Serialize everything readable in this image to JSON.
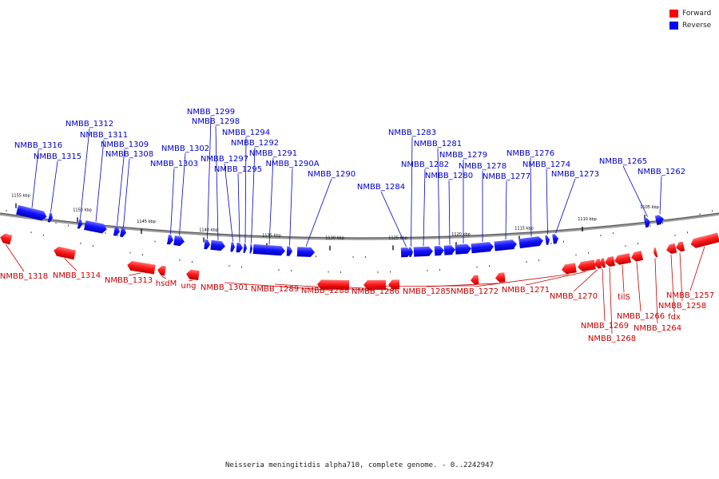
{
  "legend": {
    "forward_label": "Forward",
    "reverse_label": "Reverse",
    "forward_color": "#ff0000",
    "reverse_color": "#0000ff"
  },
  "caption": "Neisseria meningitidis alpha710, complete genome. - 0..2242947",
  "scale_labels": [
    "1155 kbp",
    "1150 kbp",
    "1145 kbp",
    "1140 kbp",
    "1135 kbp",
    "1130 kbp",
    "1125 kbp",
    "1120 kbp",
    "1115 kbp",
    "1110 kbp",
    "1105 kbp"
  ],
  "reverse_genes": [
    "NMBB_1316",
    "NMBB_1315",
    "NMBB_1312",
    "NMBB_1311",
    "NMBB_1309",
    "NMBB_1308",
    "NMBB_1303",
    "NMBB_1302",
    "NMBB_1299",
    "NMBB_1298",
    "NMBB_1297",
    "NMBB_1295",
    "NMBB_1294",
    "NMBB_1292",
    "NMBB_1291",
    "NMBB_1290A",
    "NMBB_1290",
    "NMBB_1284",
    "NMBB_1283",
    "NMBB_1282",
    "NMBB_1281",
    "NMBB_1280",
    "NMBB_1279",
    "NMBB_1278",
    "NMBB_1277",
    "NMBB_1276",
    "NMBB_1274",
    "NMBB_1273",
    "NMBB_1265",
    "NMBB_1262"
  ],
  "forward_genes": [
    "NMBB_1318",
    "NMBB_1314",
    "NMBB_1313",
    "hsdM",
    "ung",
    "NMBB_1301",
    "NMBB_1289",
    "NMBB_1288",
    "NMBB_1286",
    "NMBB_1285",
    "NMBB_1272",
    "NMBB_1271",
    "NMBB_1270",
    "NMBB_1269",
    "NMBB_1268",
    "tilS",
    "NMBB_1266",
    "NMBB_1264",
    "fdx",
    "NMBB_1258",
    "NMBB_1257"
  ]
}
